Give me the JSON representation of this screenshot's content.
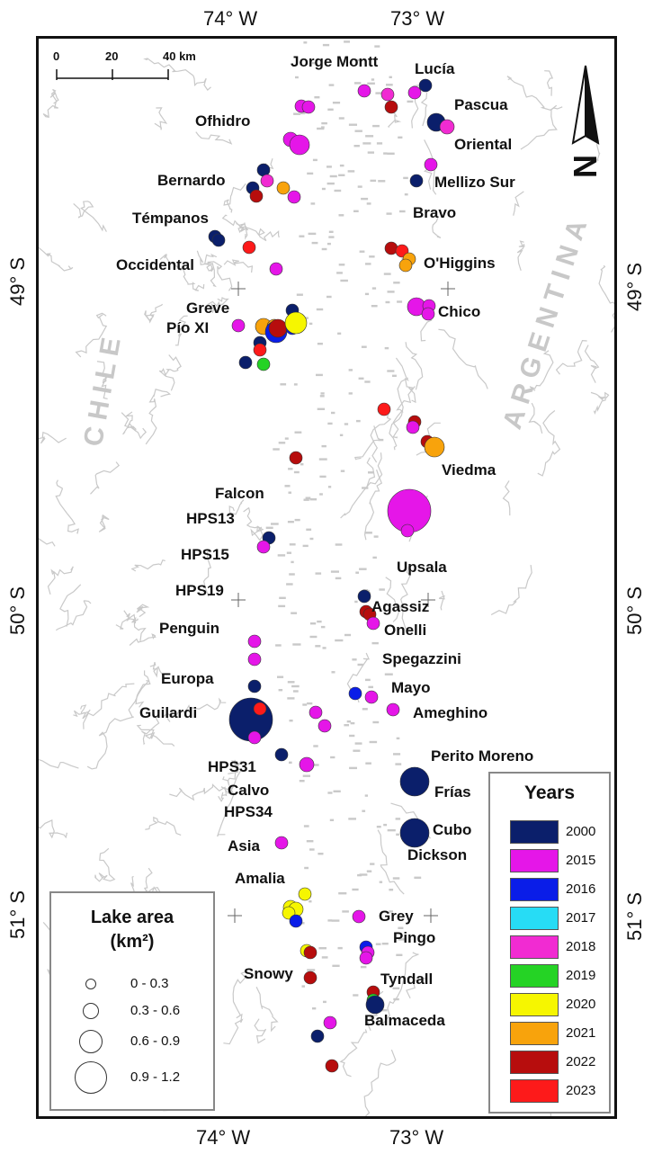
{
  "axes": {
    "top_lon": [
      "74° W",
      "73° W"
    ],
    "bottom_lon": [
      "74° W",
      "73° W"
    ],
    "left_lat": [
      "49° S",
      "50° S",
      "51° S"
    ],
    "right_lat": [
      "49° S",
      "50° S",
      "51° S"
    ]
  },
  "countries": {
    "chile": "CHILE",
    "argentina": "ARGENTINA"
  },
  "scale": {
    "labels": [
      "0",
      "20",
      "40 km"
    ]
  },
  "north_arrow": {
    "label": "N",
    "icon": "north-arrow-icon"
  },
  "glaciers": [
    {
      "id": "jorge-montt",
      "label": "Jorge Montt"
    },
    {
      "id": "lucia",
      "label": "Lucía"
    },
    {
      "id": "pascua",
      "label": "Pascua"
    },
    {
      "id": "ofhidro",
      "label": "Ofhidro"
    },
    {
      "id": "oriental",
      "label": "Oriental"
    },
    {
      "id": "bernardo",
      "label": "Bernardo"
    },
    {
      "id": "mellizo-sur",
      "label": "Mellizo Sur"
    },
    {
      "id": "bravo",
      "label": "Bravo"
    },
    {
      "id": "tempanos",
      "label": "Témpanos"
    },
    {
      "id": "ohiggins",
      "label": "O'Higgins"
    },
    {
      "id": "occidental",
      "label": "Occidental"
    },
    {
      "id": "greve",
      "label": "Greve"
    },
    {
      "id": "chico",
      "label": "Chico"
    },
    {
      "id": "pio-xi",
      "label": "Pío XI"
    },
    {
      "id": "viedma",
      "label": "Viedma"
    },
    {
      "id": "falcon",
      "label": "Falcon"
    },
    {
      "id": "hps13",
      "label": "HPS13"
    },
    {
      "id": "hps15",
      "label": "HPS15"
    },
    {
      "id": "upsala",
      "label": "Upsala"
    },
    {
      "id": "hps19",
      "label": "HPS19"
    },
    {
      "id": "agassiz",
      "label": "Agassiz"
    },
    {
      "id": "onelli",
      "label": "Onelli"
    },
    {
      "id": "penguin",
      "label": "Penguin"
    },
    {
      "id": "spegazzini",
      "label": "Spegazzini"
    },
    {
      "id": "europa",
      "label": "Europa"
    },
    {
      "id": "mayo",
      "label": "Mayo"
    },
    {
      "id": "guilardi",
      "label": "Guilardi"
    },
    {
      "id": "ameghino",
      "label": "Ameghino"
    },
    {
      "id": "perito-moreno",
      "label": "Perito Moreno"
    },
    {
      "id": "hps31",
      "label": "HPS31"
    },
    {
      "id": "calvo",
      "label": "Calvo"
    },
    {
      "id": "frias",
      "label": "Frías"
    },
    {
      "id": "hps34",
      "label": "HPS34"
    },
    {
      "id": "cubo",
      "label": "Cubo"
    },
    {
      "id": "asia",
      "label": "Asia"
    },
    {
      "id": "dickson",
      "label": "Dickson"
    },
    {
      "id": "amalia",
      "label": "Amalia"
    },
    {
      "id": "grey",
      "label": "Grey"
    },
    {
      "id": "pingo",
      "label": "Pingo"
    },
    {
      "id": "snowy",
      "label": "Snowy"
    },
    {
      "id": "tyndall",
      "label": "Tyndall"
    },
    {
      "id": "balmaceda",
      "label": "Balmaceda"
    }
  ],
  "legend_years": {
    "title": "Years",
    "items": [
      {
        "year": "2000",
        "color": "#0b1f6b"
      },
      {
        "year": "2015",
        "color": "#e516e8"
      },
      {
        "year": "2016",
        "color": "#0a1de8"
      },
      {
        "year": "2017",
        "color": "#27dcf5"
      },
      {
        "year": "2018",
        "color": "#f12bd2"
      },
      {
        "year": "2019",
        "color": "#25d325"
      },
      {
        "year": "2020",
        "color": "#f6f600"
      },
      {
        "year": "2021",
        "color": "#f8a30c"
      },
      {
        "year": "2022",
        "color": "#b70d0d"
      },
      {
        "year": "2023",
        "color": "#fd1a1a"
      }
    ]
  },
  "legend_area": {
    "title_line1": "Lake area",
    "title_line2": "(km²)",
    "classes": [
      "0 - 0.3",
      "0.3 - 0.6",
      "0.6 - 0.9",
      "0.9 - 1.2"
    ]
  }
}
